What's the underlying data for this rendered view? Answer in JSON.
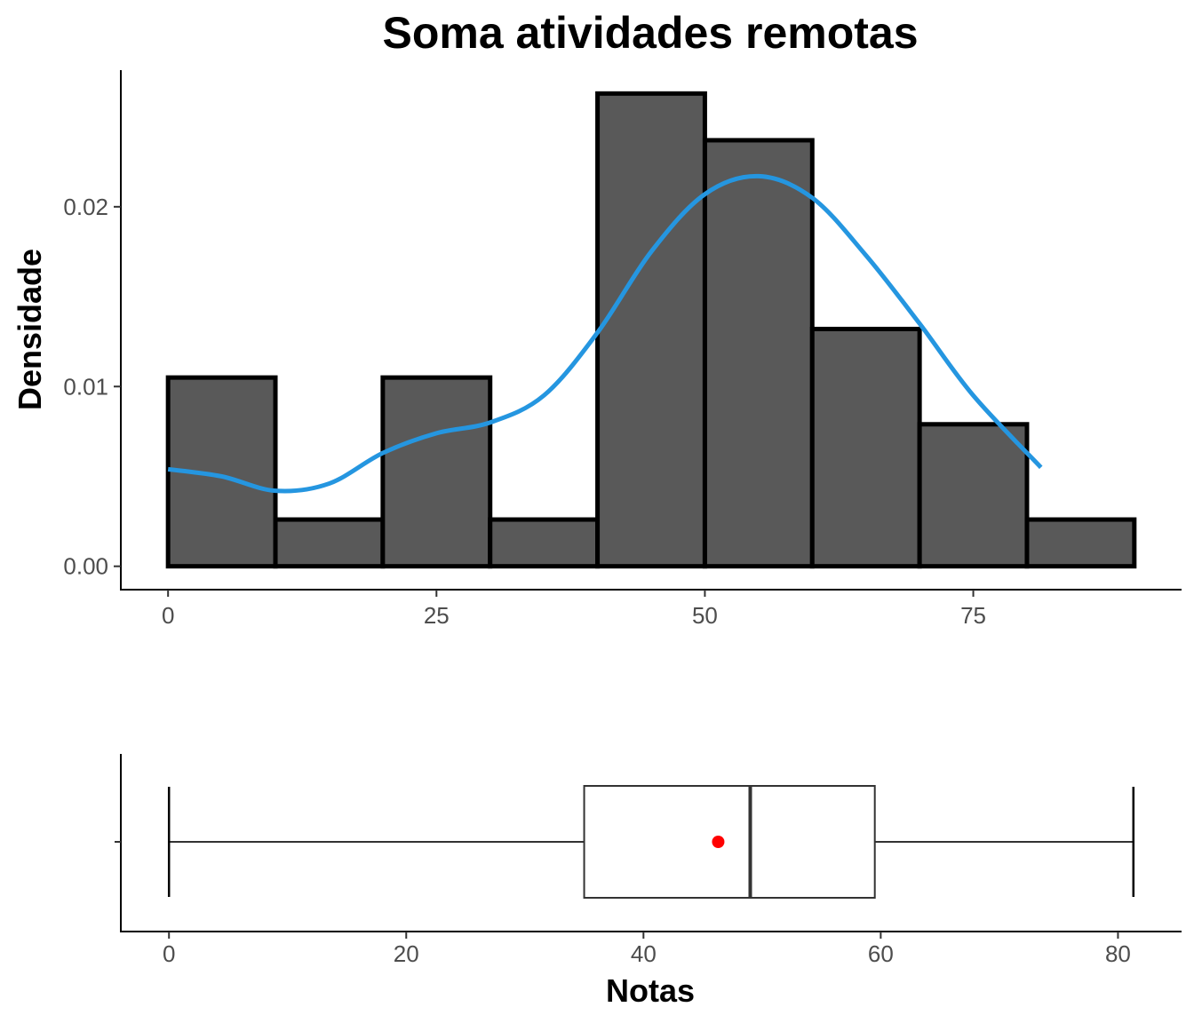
{
  "chart_data": [
    {
      "type": "bar",
      "subtype": "histogram",
      "title": "Soma atividades remotas",
      "ylabel": "Densidade",
      "xlabel": "",
      "bin_edges": [
        0,
        10,
        20,
        30,
        40,
        50,
        60,
        70,
        80,
        90
      ],
      "values": [
        0.0105,
        0.0026,
        0.0105,
        0.0026,
        0.0263,
        0.0237,
        0.0132,
        0.0079,
        0.0026
      ],
      "xlim": [
        -4.4,
        94.4
      ],
      "ylim": [
        -0.0013,
        0.0276
      ],
      "x_ticks": [
        0,
        25,
        50,
        75
      ],
      "x_tick_labels": [
        "0",
        "25",
        "50",
        "75"
      ],
      "y_ticks": [
        0,
        0.01,
        0.02
      ],
      "y_tick_labels": [
        "0.00",
        "0.01",
        "0.02"
      ],
      "bar_fill": "#595959",
      "bar_outline": "#000000",
      "density_color": "#2596e0",
      "density_curve": {
        "x": [
          0,
          5,
          10,
          15,
          20,
          25,
          30,
          35,
          40,
          45,
          50,
          55,
          60,
          65,
          70,
          75,
          81.3
        ],
        "y": [
          0.0054,
          0.005,
          0.0042,
          0.0046,
          0.0063,
          0.0074,
          0.008,
          0.0095,
          0.013,
          0.0175,
          0.0207,
          0.0217,
          0.0205,
          0.0173,
          0.0135,
          0.0095,
          0.0055
        ]
      },
      "grid": false
    },
    {
      "type": "box",
      "xlabel": "Notas",
      "ylabel": "",
      "min": 0,
      "q1": 35,
      "median": 49,
      "q3": 59.5,
      "max": 81.3,
      "mean": 46.3,
      "mean_color": "#ff0000",
      "xlim": [
        -4.06,
        85.36
      ],
      "x_ticks": [
        0,
        20,
        40,
        60,
        80
      ],
      "x_tick_labels": [
        "0",
        "20",
        "40",
        "60",
        "80"
      ],
      "grid": false
    }
  ]
}
